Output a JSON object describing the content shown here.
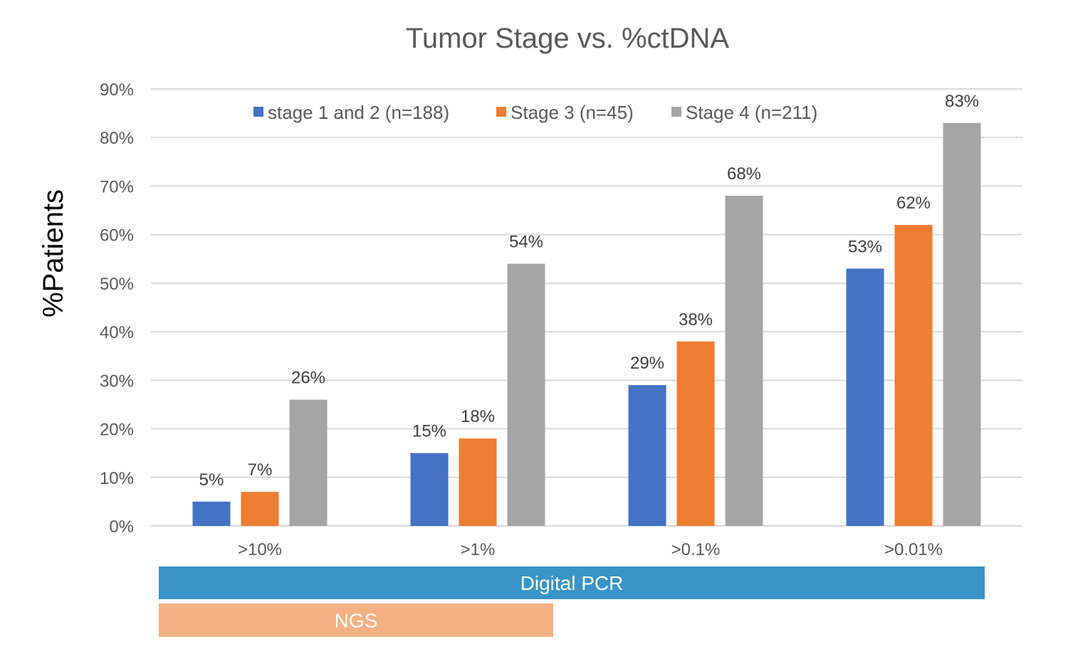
{
  "chart_data": {
    "type": "bar",
    "title": "Tumor Stage vs. %ctDNA",
    "ylabel": "%Patients",
    "xlabel": "",
    "categories": [
      ">10%",
      ">1%",
      ">0.1%",
      ">0.01%"
    ],
    "ylim": [
      0,
      90
    ],
    "yticks": [
      0,
      10,
      20,
      30,
      40,
      50,
      60,
      70,
      80,
      90
    ],
    "ytick_labels": [
      "0%",
      "10%",
      "20%",
      "30%",
      "40%",
      "50%",
      "60%",
      "70%",
      "80%",
      "90%"
    ],
    "grid": true,
    "legend_position": "top",
    "series": [
      {
        "name": "stage 1 and 2 (n=188)",
        "color": "#4472C4",
        "values": [
          5,
          15,
          29,
          53
        ],
        "labels": [
          "5%",
          "15%",
          "29%",
          "53%"
        ]
      },
      {
        "name": "Stage 3 (n=45)",
        "color": "#ED7D31",
        "values": [
          7,
          18,
          38,
          62
        ],
        "labels": [
          "7%",
          "18%",
          "38%",
          "62%"
        ]
      },
      {
        "name": "Stage 4 (n=211)",
        "color": "#A5A5A5",
        "values": [
          26,
          54,
          68,
          83
        ],
        "labels": [
          "26%",
          "54%",
          "68%",
          "83%"
        ]
      }
    ],
    "method_bands": [
      {
        "label": "Digital PCR",
        "color": "#3A94C8",
        "from_category": 0,
        "to_category": 3
      },
      {
        "label": "NGS",
        "color": "#F4B183",
        "from_category": 0,
        "to_category": 1
      }
    ]
  }
}
